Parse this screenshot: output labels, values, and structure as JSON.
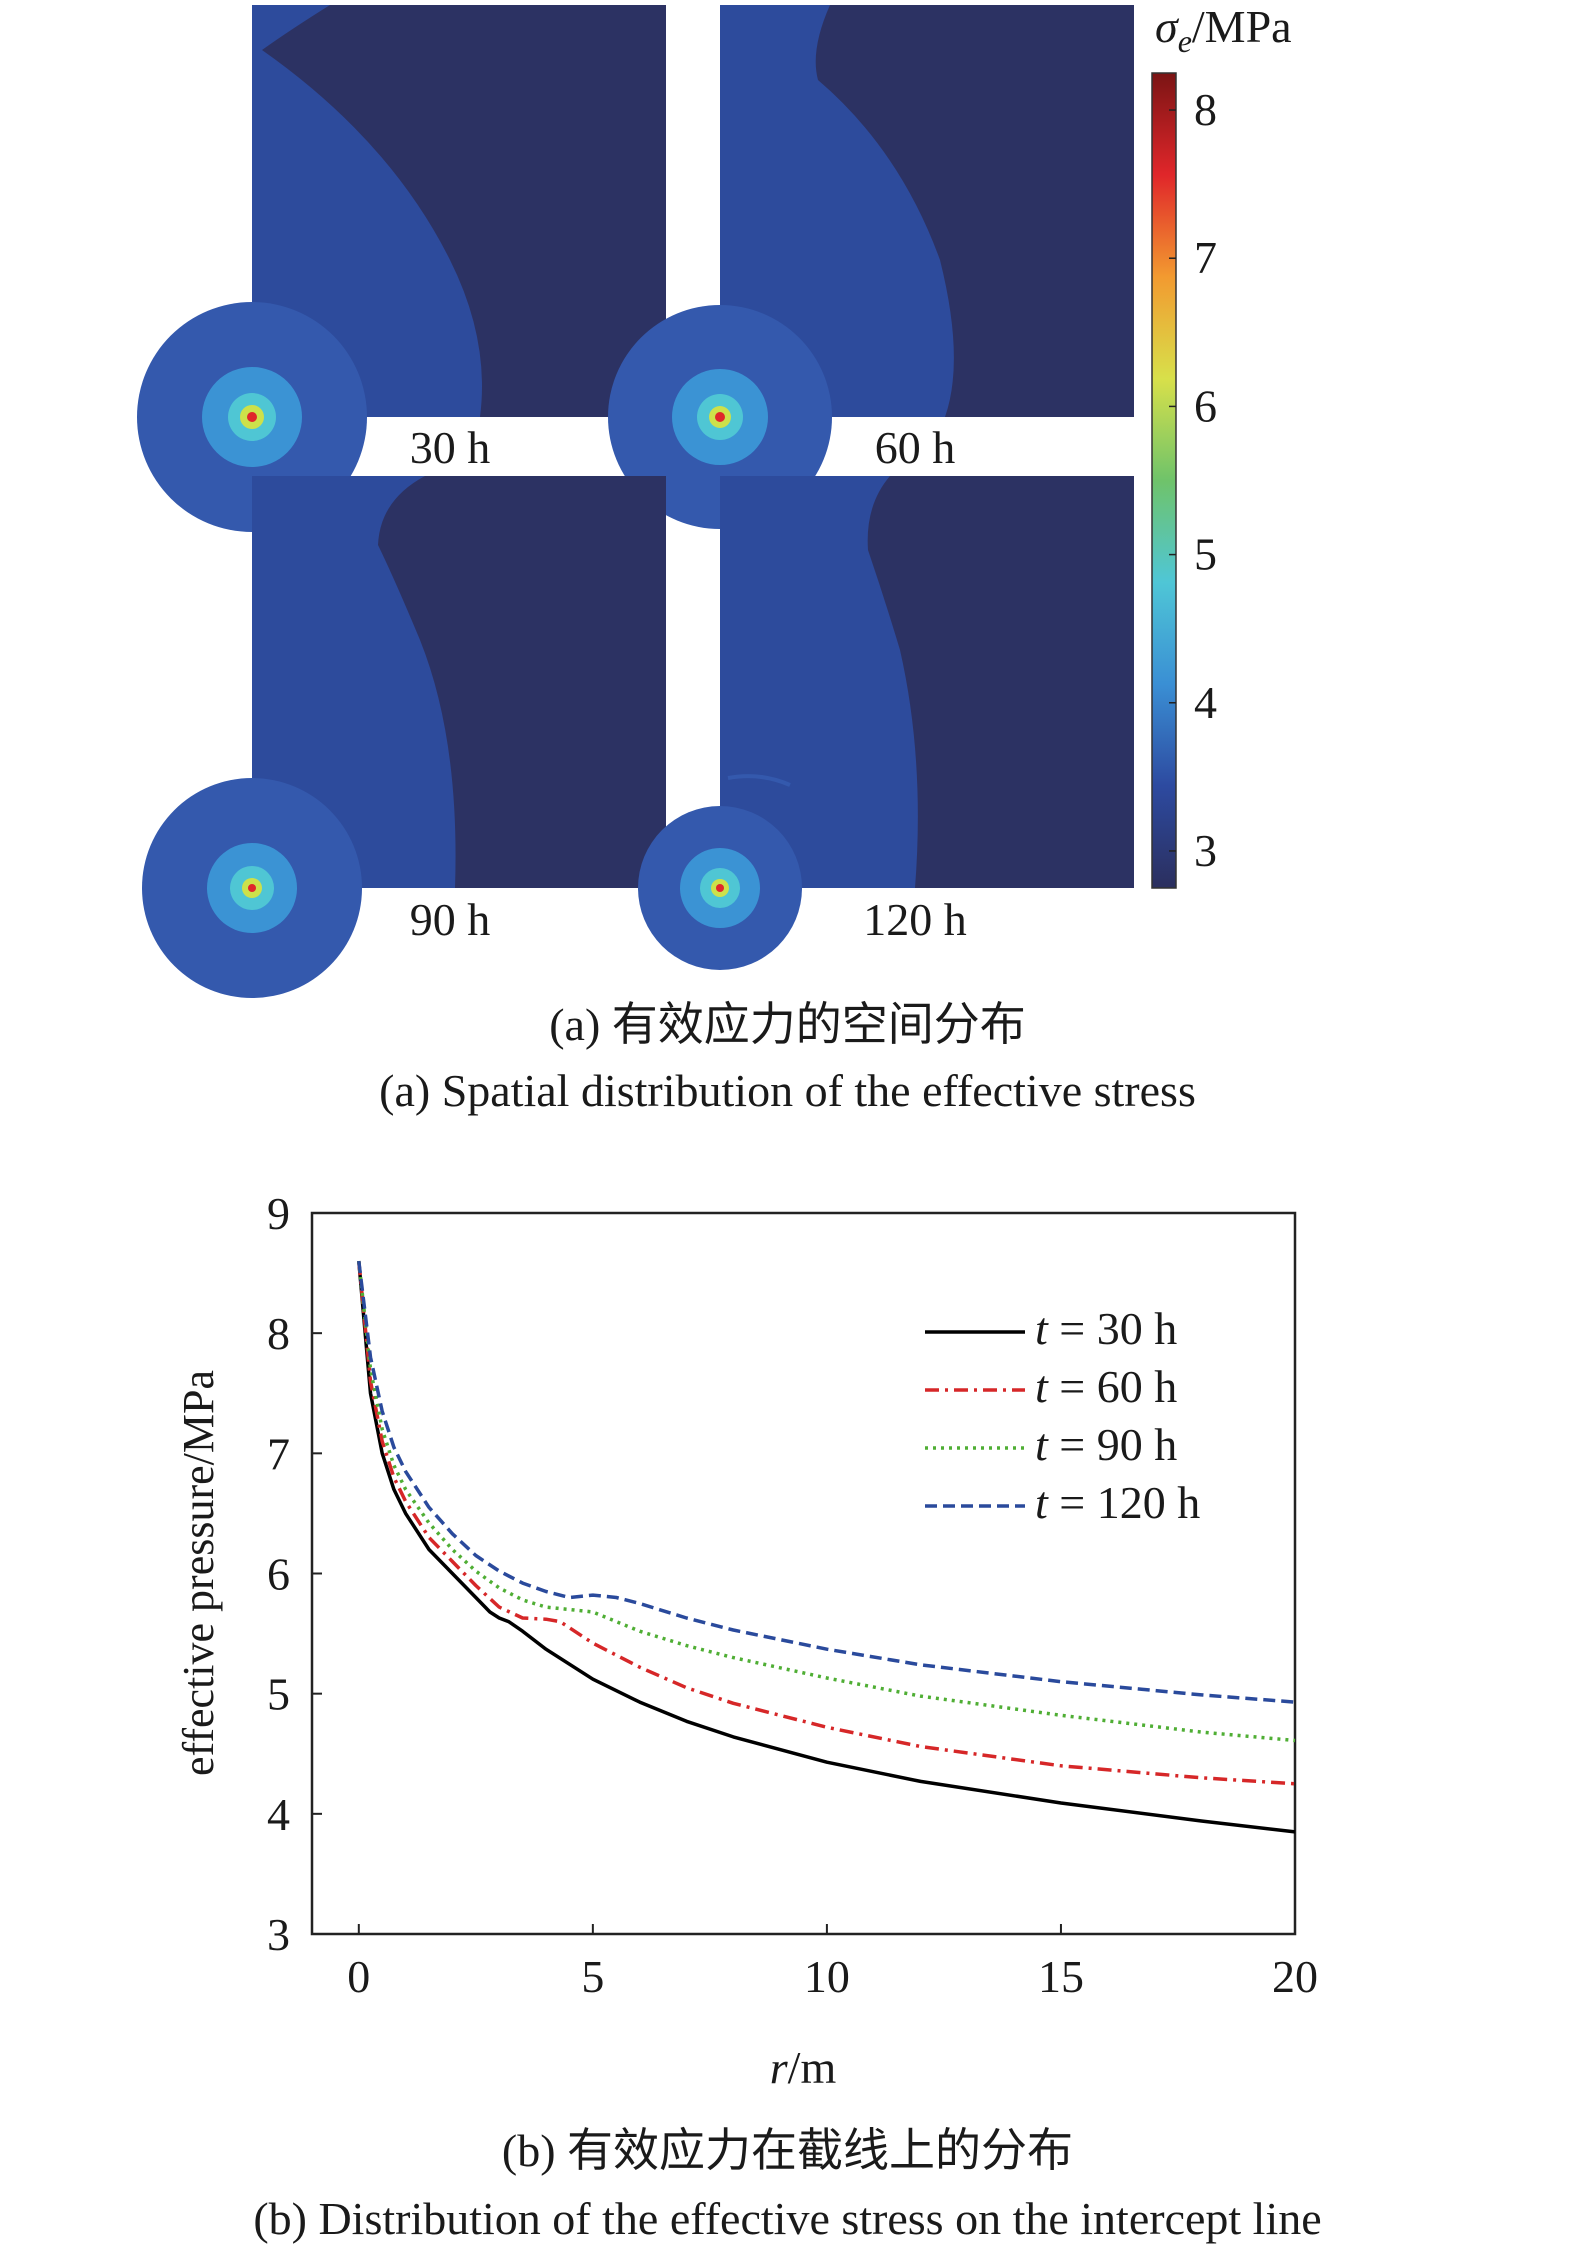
{
  "figure_a": {
    "panels": [
      {
        "label": "30 h"
      },
      {
        "label": "60 h"
      },
      {
        "label": "90 h"
      },
      {
        "label": "120 h"
      }
    ],
    "colorbar": {
      "title_symbol": "σ",
      "title_sub": "e",
      "title_unit": "/MPa",
      "ticks": [
        "8",
        "7",
        "6",
        "5",
        "4",
        "3"
      ],
      "range": [
        2.75,
        8.25
      ],
      "colors": [
        "#2b2f5e",
        "#2d4aa0",
        "#3a8fd4",
        "#4fc6d6",
        "#6fc36a",
        "#d8e04a",
        "#f29a30",
        "#e0262a",
        "#7a1414"
      ]
    },
    "caption_cn": "(a) 有效应力的空间分布",
    "caption_en": "(a) Spatial distribution of the effective stress"
  },
  "chart_data": {
    "type": "line",
    "xlabel_var": "r",
    "xlabel_unit": "/m",
    "ylabel": "effective pressure/MPa",
    "xlim": [
      -1,
      20
    ],
    "ylim": [
      3,
      9
    ],
    "xticks": [
      0,
      5,
      10,
      15,
      20
    ],
    "yticks": [
      3,
      4,
      5,
      6,
      7,
      8,
      9
    ],
    "legend_position": "top-right",
    "series": [
      {
        "name": "t = 30 h",
        "legend_var": "t",
        "legend_rest": " = 30 h",
        "color": "#000000",
        "dash": "",
        "x": [
          0,
          0.25,
          0.5,
          0.75,
          1,
          1.5,
          2,
          2.5,
          2.8,
          3,
          3.2,
          3.5,
          4,
          5,
          6,
          7,
          8,
          10,
          12,
          15,
          18,
          20
        ],
        "y": [
          8.6,
          7.5,
          7.0,
          6.7,
          6.5,
          6.2,
          6.0,
          5.8,
          5.68,
          5.63,
          5.6,
          5.52,
          5.37,
          5.12,
          4.93,
          4.77,
          4.64,
          4.43,
          4.27,
          4.09,
          3.94,
          3.85
        ]
      },
      {
        "name": "t = 60 h",
        "legend_var": "t",
        "legend_rest": " = 60 h",
        "color": "#d62728",
        "dash": "14,6,3,6",
        "x": [
          0,
          0.25,
          0.5,
          0.75,
          1,
          1.5,
          2,
          2.5,
          3,
          3.5,
          4,
          4.3,
          5,
          6,
          7,
          8,
          10,
          12,
          15,
          18,
          20
        ],
        "y": [
          8.6,
          7.6,
          7.1,
          6.8,
          6.6,
          6.3,
          6.1,
          5.9,
          5.72,
          5.63,
          5.62,
          5.6,
          5.42,
          5.22,
          5.05,
          4.92,
          4.72,
          4.56,
          4.4,
          4.3,
          4.25
        ]
      },
      {
        "name": "t = 90 h",
        "legend_var": "t",
        "legend_rest": " = 90 h",
        "color": "#4fae34",
        "dash": "3,5",
        "x": [
          0,
          0.25,
          0.5,
          0.75,
          1,
          1.5,
          2,
          2.5,
          3,
          3.5,
          4,
          4.5,
          5,
          5.5,
          6,
          7,
          8,
          10,
          12,
          15,
          18,
          20
        ],
        "y": [
          8.6,
          7.7,
          7.2,
          6.9,
          6.7,
          6.42,
          6.2,
          6.02,
          5.88,
          5.78,
          5.72,
          5.7,
          5.68,
          5.6,
          5.52,
          5.4,
          5.3,
          5.13,
          4.98,
          4.82,
          4.68,
          4.61
        ]
      },
      {
        "name": "t = 120 h",
        "legend_var": "t",
        "legend_rest": " = 120 h",
        "color": "#2a4a9c",
        "dash": "12,6",
        "x": [
          0,
          0.25,
          0.5,
          0.75,
          1,
          1.5,
          2,
          2.5,
          3,
          3.5,
          4,
          4.5,
          5,
          5.5,
          6,
          7,
          8,
          10,
          12,
          15,
          18,
          20
        ],
        "y": [
          8.6,
          7.8,
          7.35,
          7.05,
          6.85,
          6.55,
          6.33,
          6.15,
          6.02,
          5.92,
          5.85,
          5.8,
          5.82,
          5.8,
          5.75,
          5.63,
          5.53,
          5.37,
          5.24,
          5.1,
          4.99,
          4.93
        ]
      }
    ]
  },
  "figure_b": {
    "caption_cn": "(b) 有效应力在截线上的分布",
    "caption_en": "(b) Distribution of the effective stress on the intercept line"
  }
}
